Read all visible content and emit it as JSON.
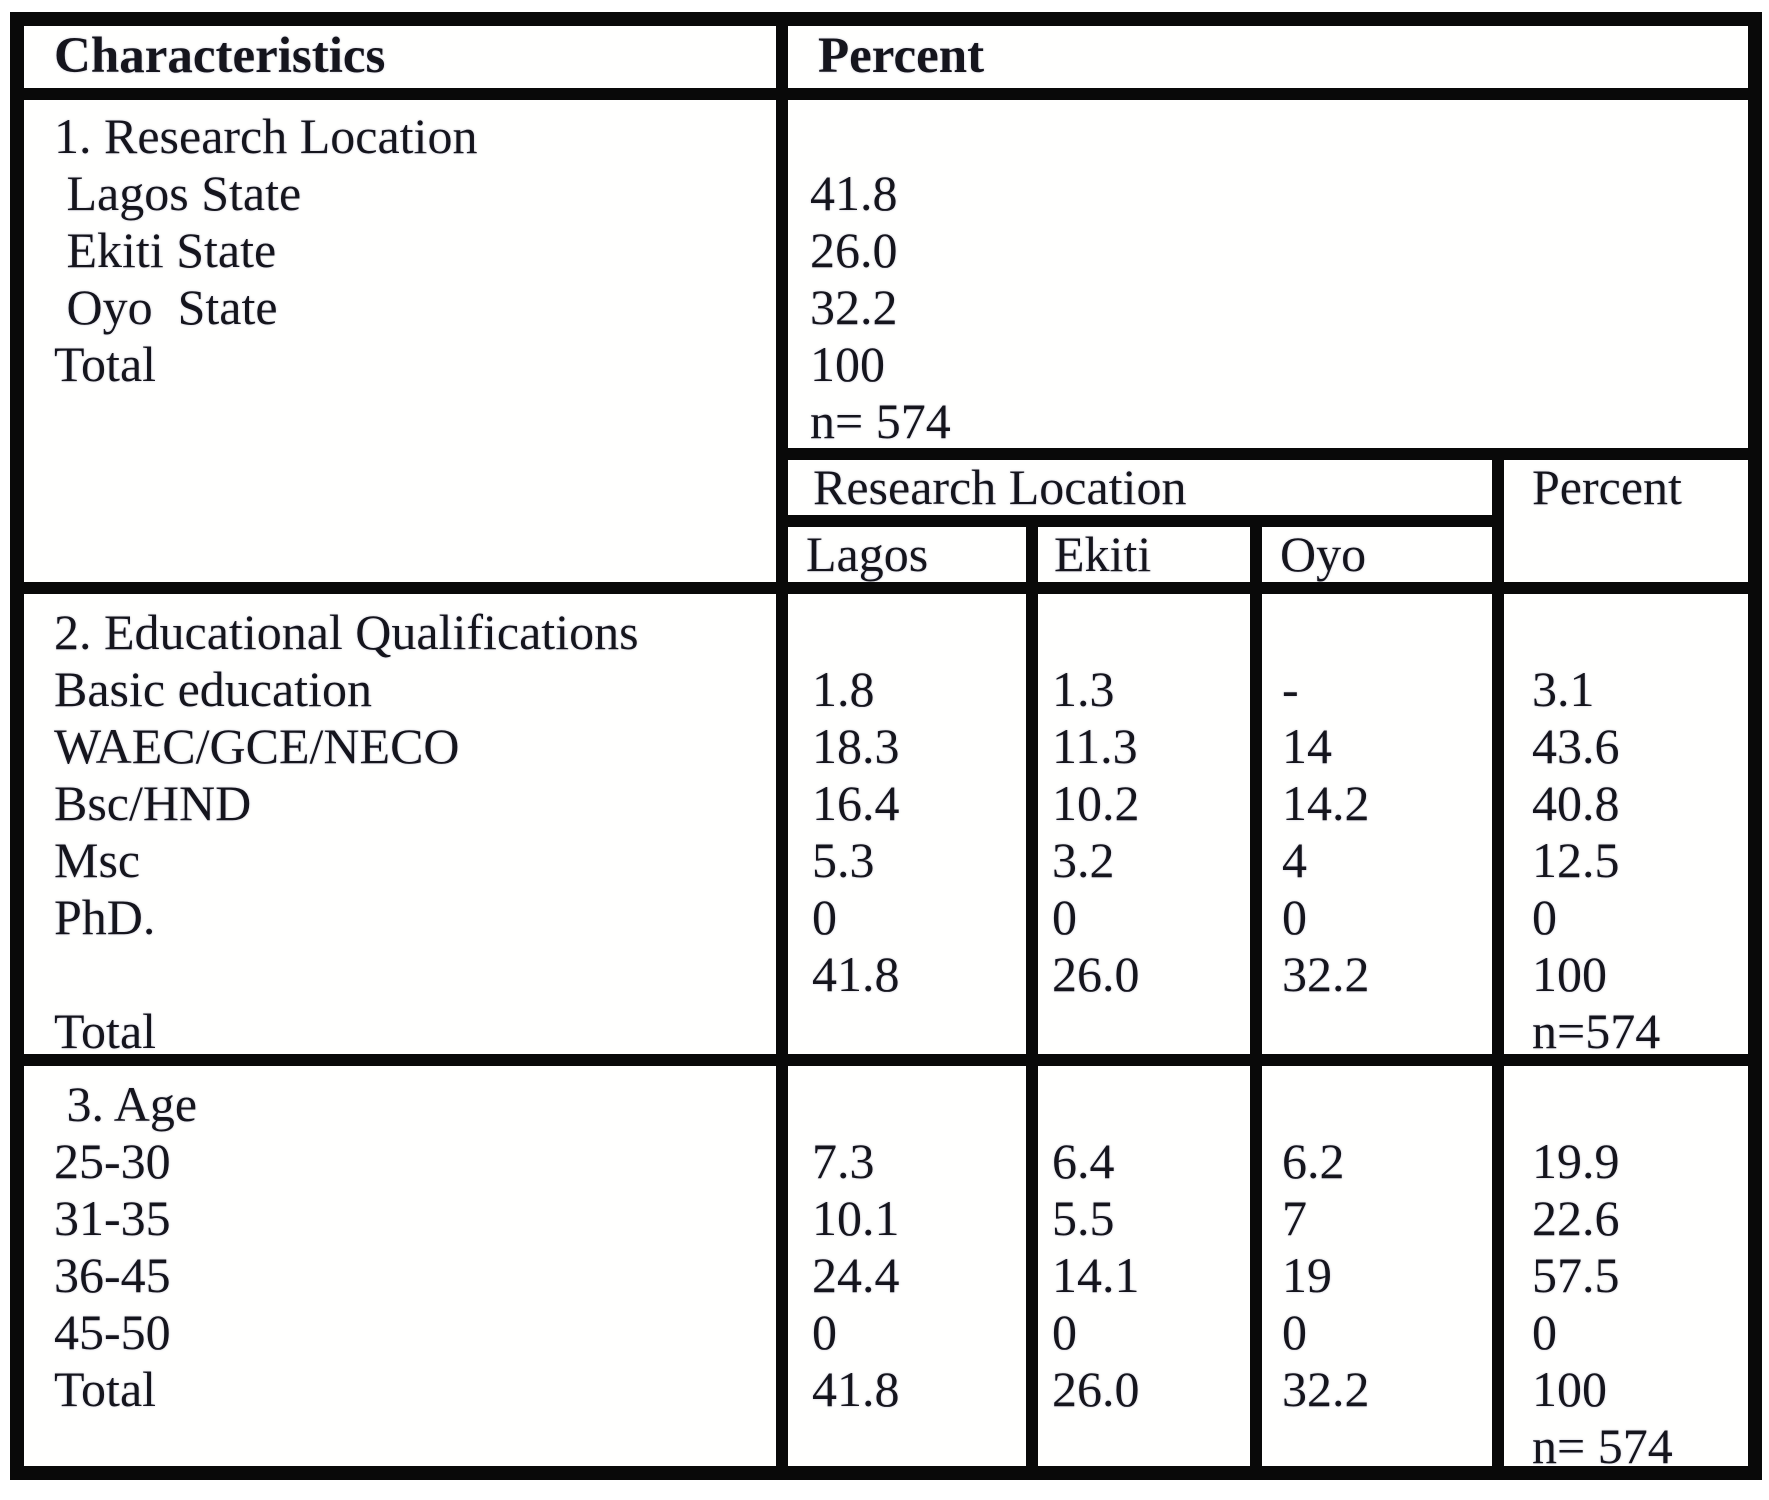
{
  "table": {
    "header": {
      "characteristics": "Characteristics",
      "percent": "Percent"
    },
    "section1": {
      "title": "1. Research Location",
      "labels": [
        "1. Research Location",
        " Lagos State",
        " Ekiti State",
        " Oyo  State",
        "Total"
      ],
      "values": [
        "",
        "41.8",
        "26.0",
        "32.2",
        "100",
        "n= 574"
      ]
    },
    "subheader": {
      "research_location": "Research Location",
      "percent": "Percent",
      "columns": [
        "Lagos",
        "Ekiti",
        "Oyo"
      ]
    },
    "section2": {
      "title": "2. Educational Qualifications",
      "labels": [
        "2. Educational Qualifications",
        "Basic education",
        "WAEC/GCE/NECO",
        "Bsc/HND",
        "Msc",
        "PhD.",
        "",
        "Total"
      ],
      "lagos": [
        "",
        "1.8",
        "18.3",
        "16.4",
        "5.3",
        "0",
        "41.8"
      ],
      "ekiti": [
        "",
        "1.3",
        "11.3",
        "10.2",
        "3.2",
        "0",
        "26.0"
      ],
      "oyo": [
        "",
        "-",
        "14",
        "14.2",
        "4",
        "0",
        "32.2"
      ],
      "percent": [
        "",
        "3.1",
        "43.6",
        "40.8",
        "12.5",
        "0",
        "100",
        "n=574"
      ]
    },
    "section3": {
      "title": "3. Age",
      "labels": [
        " 3. Age",
        "25-30",
        "31-35",
        "36-45",
        "45-50",
        "Total"
      ],
      "lagos": [
        "",
        "7.3",
        "10.1",
        "24.4",
        "0",
        "41.8"
      ],
      "ekiti": [
        "",
        "6.4",
        "5.5",
        "14.1",
        "0",
        "26.0"
      ],
      "oyo": [
        "",
        "6.2",
        "7",
        "19",
        "0",
        "32.2"
      ],
      "percent": [
        "",
        "19.9",
        "22.6",
        "57.5",
        "0",
        "100",
        "n= 574"
      ]
    },
    "colors": {
      "rule_black": "#0b0b0b",
      "paper_white": "#fdfdfc",
      "ink": "#17171f"
    }
  }
}
